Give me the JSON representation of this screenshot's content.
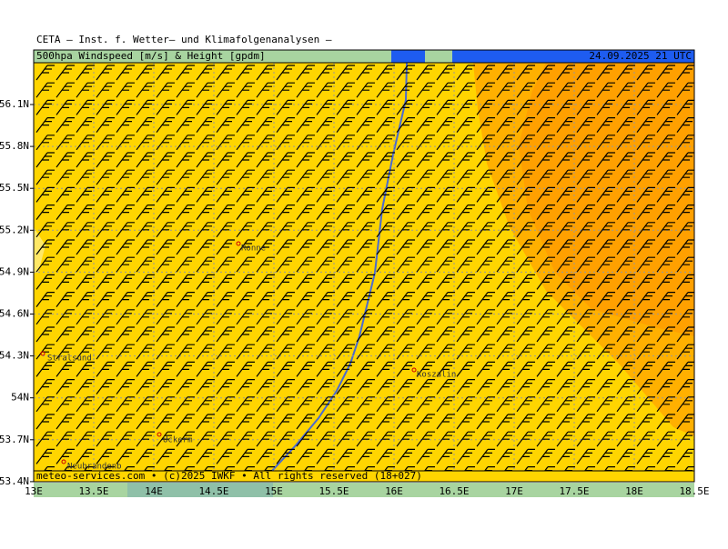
{
  "header": {
    "title": "CETA — Inst. f. Wetter— und Klimafolgenanalysen —",
    "legend": "500hpa Windspeed [m/s] & Height [gpdm]",
    "date": "24.09.2025 21 UTC"
  },
  "footer": {
    "credit": "meteo-services.com • (c)2025 IWKF • All rights reserved (18+027)"
  },
  "axes": {
    "lat_labels": [
      "56.1N",
      "55.8N",
      "55.5N",
      "55.2N",
      "54.9N",
      "54.6N",
      "54.3N",
      "54N",
      "53.7N",
      "53.4N"
    ],
    "lon_labels": [
      "13E",
      "13.5E",
      "14E",
      "14.5E",
      "15E",
      "15.5E",
      "16E",
      "16.5E",
      "17E",
      "17.5E",
      "18E",
      "18.5E"
    ]
  },
  "cities": [
    {
      "label": "Ronne"
    },
    {
      "label": "Stralsund"
    },
    {
      "label": "Koszalin"
    },
    {
      "label": "Uckerm"
    },
    {
      "label": "Neubrandenb"
    }
  ]
}
